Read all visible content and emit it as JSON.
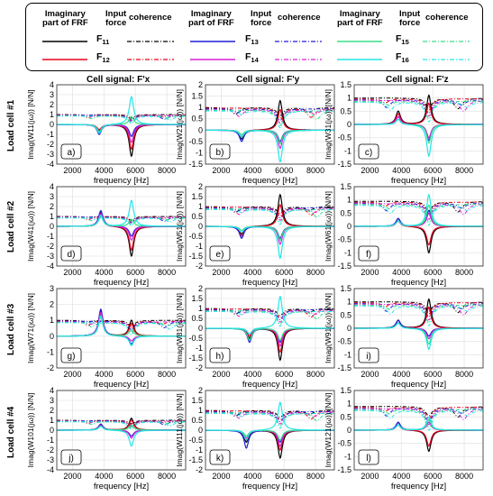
{
  "legend": {
    "frf_header": [
      "Imaginary",
      "part of FRF"
    ],
    "input_header": [
      "Input",
      "force"
    ],
    "coherence_header": "coherence",
    "entries": [
      {
        "label": "F",
        "sub": "11",
        "color": "#000000"
      },
      {
        "label": "F",
        "sub": "12",
        "color": "#e8001c"
      },
      {
        "label": "F",
        "sub": "13",
        "color": "#1f1fd8"
      },
      {
        "label": "F",
        "sub": "14",
        "color": "#d81fd8"
      },
      {
        "label": "F",
        "sub": "15",
        "color": "#33e08a"
      },
      {
        "label": "F",
        "sub": "16",
        "color": "#22e6e6"
      }
    ]
  },
  "columns": [
    "Cell signal: F'x",
    "Cell signal: F'y",
    "Cell signal: F'z"
  ],
  "rows": [
    "Load cell #1",
    "Load cell #2",
    "Load cell #3",
    "Load cell #4"
  ],
  "chart_data": {
    "type": "line",
    "xlabel": "frequency [Hz]",
    "xlim": [
      1000,
      9200
    ],
    "xticks": [
      2000,
      4000,
      6000,
      8000
    ],
    "panels": [
      {
        "id": "a",
        "ylabel": "Imag(W11(jω)) [N/N]",
        "ylim": [
          -4,
          4
        ],
        "yticks": [
          -4,
          -3,
          -2,
          -1,
          0,
          1,
          2,
          3,
          4
        ],
        "peaks": [
          {
            "f": 3700,
            "a": [
              -0.6,
              -0.5,
              -1.0,
              -0.8,
              -0.7,
              -0.9
            ]
          },
          {
            "f": 5750,
            "a": [
              -3.2,
              -2.5,
              -1.2,
              -1.8,
              0.8,
              2.8
            ]
          }
        ],
        "coh": 1.0
      },
      {
        "id": "b",
        "ylabel": "Imag(W21(jω)) [N/N]",
        "ylim": [
          -1.5,
          2
        ],
        "yticks": [
          -1.5,
          -1,
          -0.5,
          0,
          0.5,
          1,
          1.5,
          2
        ],
        "peaks": [
          {
            "f": 3300,
            "a": [
              -0.4,
              -0.3,
              -0.5,
              -0.3,
              -0.2,
              -0.3
            ]
          },
          {
            "f": 5750,
            "a": [
              1.3,
              0.9,
              -0.5,
              -0.8,
              -0.6,
              -1.4
            ]
          }
        ],
        "coh": 1.0
      },
      {
        "id": "c",
        "ylabel": "Imag(W31(jω)) [N/N]",
        "ylim": [
          -1.5,
          1.5
        ],
        "yticks": [
          -1.5,
          -1,
          -0.5,
          0,
          0.5,
          1,
          1.5
        ],
        "peaks": [
          {
            "f": 3800,
            "a": [
              0.5,
              0.4,
              0.3,
              0.3,
              0.2,
              0.2
            ]
          },
          {
            "f": 5750,
            "a": [
              1.1,
              0.8,
              -0.6,
              -0.5,
              -0.7,
              -1.2
            ]
          }
        ],
        "coh": 1.0
      },
      {
        "id": "d",
        "ylabel": "Imag(W41(jω)) [N/N]",
        "ylim": [
          -4,
          4
        ],
        "yticks": [
          -4,
          -3,
          -2,
          -1,
          0,
          1,
          2,
          3,
          4
        ],
        "peaks": [
          {
            "f": 3800,
            "a": [
              1.4,
              1.2,
              1.6,
              1.3,
              1.0,
              1.1
            ]
          },
          {
            "f": 5750,
            "a": [
              -3.0,
              -2.4,
              -1.0,
              -1.4,
              0.7,
              2.6
            ]
          }
        ],
        "coh": 1.0
      },
      {
        "id": "e",
        "ylabel": "Imag(W51(jω)) [N/N]",
        "ylim": [
          -2,
          2
        ],
        "yticks": [
          -2,
          -1.5,
          -1,
          -0.5,
          0,
          0.5,
          1,
          1.5,
          2
        ],
        "peaks": [
          {
            "f": 3300,
            "a": [
              -0.4,
              -0.5,
              -0.6,
              -0.3,
              -0.2,
              -0.3
            ]
          },
          {
            "f": 5750,
            "a": [
              1.6,
              1.1,
              -0.6,
              -0.9,
              -0.7,
              -1.6
            ]
          }
        ],
        "coh": 1.0
      },
      {
        "id": "f",
        "ylabel": "Imag(W61(jω)) [N/N]",
        "ylim": [
          -1.5,
          1.5
        ],
        "yticks": [
          -1.5,
          -1,
          -0.5,
          0,
          0.5,
          1,
          1.5
        ],
        "peaks": [
          {
            "f": 3800,
            "a": [
              0.3,
              0.2,
              0.3,
              0.2,
              0.2,
              0.2
            ]
          },
          {
            "f": 5750,
            "a": [
              -1.0,
              -0.7,
              0.6,
              0.5,
              0.8,
              1.2
            ]
          }
        ],
        "coh": 0.95
      },
      {
        "id": "g",
        "ylabel": "Imag(W71(jω)) [N/N]",
        "ylim": [
          -2,
          3
        ],
        "yticks": [
          -2,
          -1,
          0,
          1,
          2,
          3
        ],
        "peaks": [
          {
            "f": 3800,
            "a": [
              1.6,
              1.4,
              1.7,
              1.5,
              1.2,
              1.3
            ]
          },
          {
            "f": 5750,
            "a": [
              1.0,
              0.8,
              -0.5,
              -0.3,
              0.4,
              -0.6
            ]
          }
        ],
        "coh": 1.0
      },
      {
        "id": "h",
        "ylabel": "Imag(W81(jω)) [N/N]",
        "ylim": [
          -2,
          2
        ],
        "yticks": [
          -2,
          -1.5,
          -1,
          -0.5,
          0,
          0.5,
          1,
          1.5,
          2
        ],
        "peaks": [
          {
            "f": 3800,
            "a": [
              -0.5,
              -0.4,
              -0.7,
              -0.3,
              -0.6,
              -0.3
            ]
          },
          {
            "f": 5750,
            "a": [
              -1.6,
              -1.2,
              -0.7,
              -0.9,
              -0.6,
              1.6
            ]
          }
        ],
        "coh": 1.0
      },
      {
        "id": "i",
        "ylabel": "Imag(W91(jω)) [N/N]",
        "ylim": [
          -1.5,
          1.5
        ],
        "yticks": [
          -1.5,
          -1,
          -0.5,
          0,
          0.5,
          1,
          1.5
        ],
        "peaks": [
          {
            "f": 3800,
            "a": [
              0.3,
              0.2,
              0.3,
              0.2,
              0.2,
              0.2
            ]
          },
          {
            "f": 5750,
            "a": [
              1.1,
              0.8,
              -0.3,
              -0.4,
              -0.6,
              -0.8
            ]
          }
        ],
        "coh": 1.0
      },
      {
        "id": "j",
        "ylabel": "Imag(W101(jω)) [N/N]",
        "ylim": [
          -4,
          4
        ],
        "yticks": [
          -4,
          -3,
          -2,
          -1,
          0,
          1,
          2,
          3,
          4
        ],
        "peaks": [
          {
            "f": 3800,
            "a": [
              0.6,
              0.5,
              0.6,
              0.5,
              0.4,
              0.4
            ]
          },
          {
            "f": 5750,
            "a": [
              1.2,
              1.0,
              -0.6,
              -0.8,
              0.5,
              -1.6
            ]
          }
        ],
        "coh": 1.0
      },
      {
        "id": "k",
        "ylabel": "Imag(W111(jω)) [N/N]",
        "ylim": [
          -2,
          2
        ],
        "yticks": [
          -2,
          -1.5,
          -1,
          -0.5,
          0,
          0.5,
          1,
          1.5,
          2
        ],
        "peaks": [
          {
            "f": 3600,
            "a": [
              -0.6,
              -0.5,
              -0.9,
              -0.4,
              -0.3,
              -0.5
            ]
          },
          {
            "f": 5750,
            "a": [
              -1.4,
              -1.0,
              -0.6,
              -0.8,
              -0.5,
              1.4
            ]
          }
        ],
        "coh": 1.0
      },
      {
        "id": "l",
        "ylabel": "Imag(W121(jω)) [N/N]",
        "ylim": [
          -1.5,
          1.5
        ],
        "yticks": [
          -1.5,
          -1,
          -0.5,
          0,
          0.5,
          1,
          1.5
        ],
        "peaks": [
          {
            "f": 3800,
            "a": [
              0.3,
              0.2,
              0.3,
              0.2,
              0.2,
              0.2
            ]
          },
          {
            "f": 5750,
            "a": [
              -0.8,
              -0.6,
              0.4,
              0.3,
              0.4,
              0.5
            ]
          }
        ],
        "coh": 0.9
      }
    ]
  }
}
